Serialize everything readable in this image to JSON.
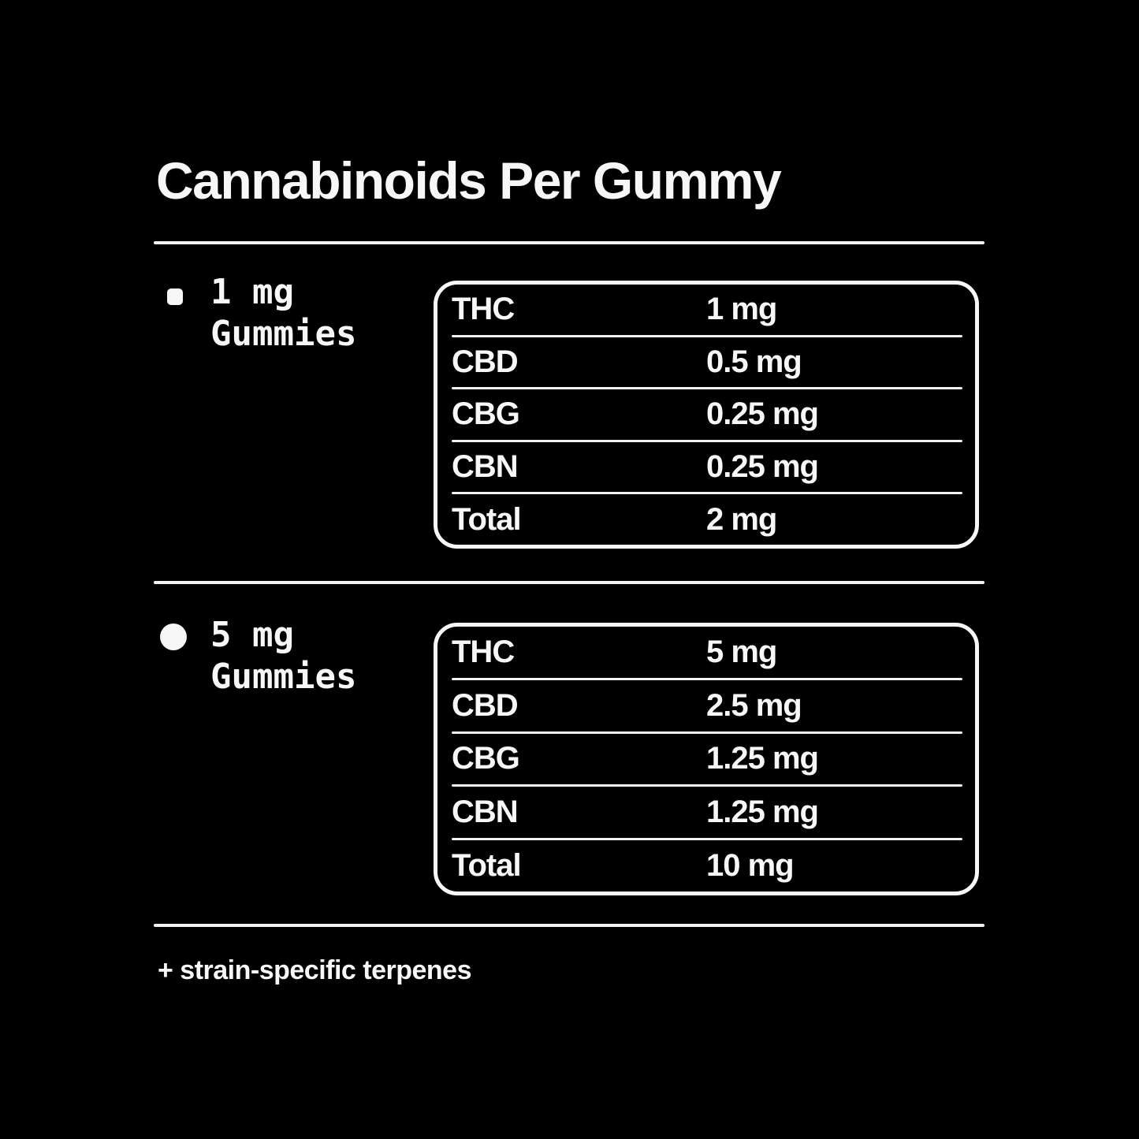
{
  "page": {
    "title": "Cannabinoids Per Gummy",
    "footer": "+ strain-specific terpenes",
    "colors": {
      "background": "#000000",
      "foreground": "#F7F7F7",
      "rule": "#F2F2F2"
    }
  },
  "sections": [
    {
      "bullet": "square-bullet",
      "label_line1": "1 mg",
      "label_line2": "Gummies",
      "rows": [
        {
          "label": "THC",
          "value": "1 mg"
        },
        {
          "label": "CBD",
          "value": "0.5 mg"
        },
        {
          "label": "CBG",
          "value": "0.25 mg"
        },
        {
          "label": "CBN",
          "value": "0.25 mg"
        },
        {
          "label": "Total",
          "value": "2 mg"
        }
      ]
    },
    {
      "bullet": "circle-bullet",
      "label_line1": "5 mg",
      "label_line2": "Gummies",
      "rows": [
        {
          "label": "THC",
          "value": "5 mg"
        },
        {
          "label": "CBD",
          "value": "2.5 mg"
        },
        {
          "label": "CBG",
          "value": "1.25 mg"
        },
        {
          "label": "CBN",
          "value": "1.25 mg"
        },
        {
          "label": "Total",
          "value": "10 mg"
        }
      ]
    }
  ]
}
